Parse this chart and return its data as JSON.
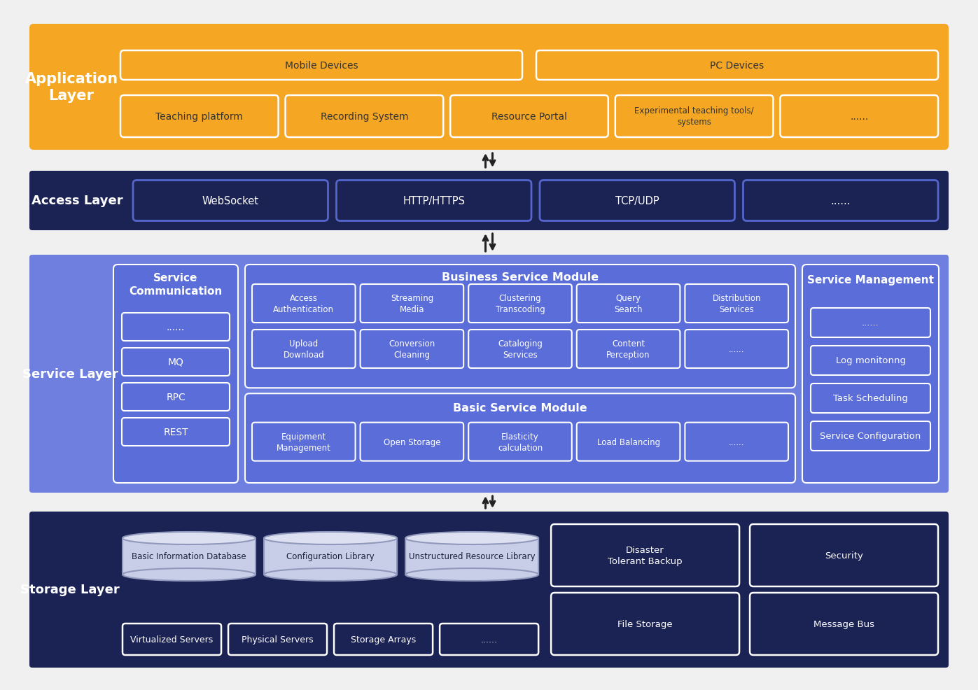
{
  "bg_color": "#f0f0f0",
  "app_layer": {
    "color": "#F5A623",
    "label": "Application\nLayer",
    "label_color": "#ffffff",
    "mobile_text": "Mobile Devices",
    "pc_text": "PC Devices",
    "row2_labels": [
      "Teaching platform",
      "Recording System",
      "Resource Portal",
      "Experimental teaching tools/\nsystems",
      "......"
    ]
  },
  "access_layer": {
    "color": "#1B2254",
    "label": "Access Layer",
    "label_color": "#ffffff",
    "boxes": [
      "WebSocket",
      "HTTP/HTTPS",
      "TCP/UDP",
      "......"
    ],
    "box_edge_color": "#5566cc"
  },
  "service_layer": {
    "color": "#6E7FE0",
    "inner_color": "#5A6DD8",
    "label": "Service Layer",
    "label_color": "#ffffff",
    "comm_title": "Service\nCommunication",
    "comm_items": [
      "REST",
      "RPC",
      "MQ",
      "......"
    ],
    "biz_title": "Business Service Module",
    "biz_row1": [
      "Access\nAuthentication",
      "Streaming\nMedia",
      "Clustering\nTranscoding",
      "Query\nSearch",
      "Distribution\nServices"
    ],
    "biz_row2": [
      "Upload\nDownload",
      "Conversion\nCleaning",
      "Cataloging\nServices",
      "Content\nPerception",
      "......"
    ],
    "basic_title": "Basic Service Module",
    "basic_items": [
      "Equipment\nManagement",
      "Open Storage",
      "Elasticity\ncalculation",
      "Load Balancing",
      "......"
    ],
    "mgmt_title": "Service Management",
    "mgmt_items": [
      "Service Configuration",
      "Task Scheduling",
      "Log monitonng",
      "......"
    ]
  },
  "storage_layer": {
    "color": "#1B2254",
    "label": "Storage Layer",
    "label_color": "#ffffff",
    "db_labels": [
      "Basic Information Database",
      "Configuration Library",
      "Unstructured Resource Library"
    ],
    "db_fill": "#c8cde8",
    "db_top_fill": "#dde0f0",
    "db_edge": "#9099bb",
    "server_labels": [
      "Virtualized Servers",
      "Physical Servers",
      "Storage Arrays",
      "......"
    ],
    "right_boxes": [
      {
        "text": "Disaster\nTolerant Backup",
        "row": 0,
        "col": 0
      },
      {
        "text": "Security",
        "row": 0,
        "col": 1
      },
      {
        "text": "File Storage",
        "row": 1,
        "col": 0
      },
      {
        "text": "Message Bus",
        "row": 1,
        "col": 1
      }
    ]
  }
}
